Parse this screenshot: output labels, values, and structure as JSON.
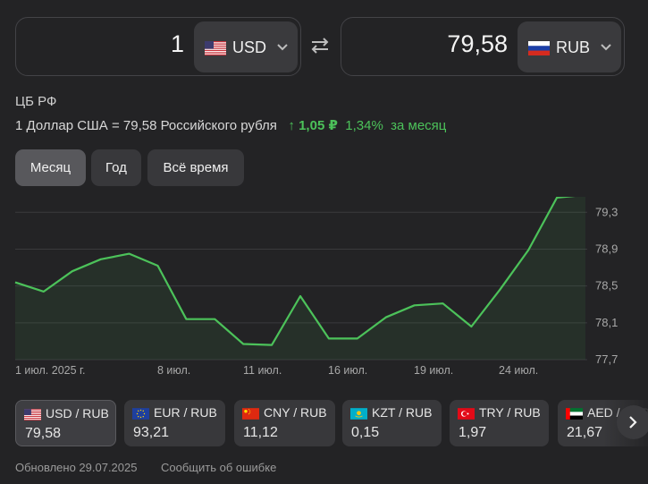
{
  "converter": {
    "from_amount": "1",
    "from_currency": "USD",
    "to_amount": "79,58",
    "to_currency": "RUB"
  },
  "source": "ЦБ РФ",
  "rate": {
    "text": "1 Доллар США = 79,58 Российского рубля",
    "arrow": "↑",
    "change_abs": "1,05 ₽",
    "change_pct": "1,34%",
    "period_text": "за месяц"
  },
  "periods": [
    {
      "label": "Месяц",
      "active": true
    },
    {
      "label": "Год",
      "active": false
    },
    {
      "label": "Всё время",
      "active": false
    }
  ],
  "chart_data": {
    "type": "area",
    "line_color": "#4cc25a",
    "x_tick_labels": [
      "1 июл. 2025 г.",
      "8 июл.",
      "11 июл.",
      "16 июл.",
      "19 июл.",
      "24 июл."
    ],
    "y_tick_labels": [
      "79,3",
      "78,9",
      "78,5",
      "78,1",
      "77,7"
    ],
    "ylim": [
      77.7,
      79.4
    ],
    "grid": true,
    "values": [
      78.53,
      78.43,
      78.65,
      78.78,
      78.84,
      78.71,
      78.13,
      78.13,
      77.86,
      77.85,
      78.38,
      77.92,
      77.92,
      78.15,
      78.28,
      78.3,
      78.05,
      78.45,
      78.88,
      79.45,
      79.48
    ]
  },
  "pairs": [
    {
      "name": "USD / RUB",
      "value": "79,58",
      "flag": "us-flag",
      "active": true
    },
    {
      "name": "EUR / RUB",
      "value": "93,21",
      "flag": "eu-flag",
      "active": false
    },
    {
      "name": "CNY / RUB",
      "value": "11,12",
      "flag": "cn-flag",
      "active": false
    },
    {
      "name": "KZT / RUB",
      "value": "0,15",
      "flag": "kz-flag",
      "active": false
    },
    {
      "name": "TRY / RUB",
      "value": "1,97",
      "flag": "tr-flag",
      "active": false
    },
    {
      "name": "AED / RUB",
      "value": "21,67",
      "flag": "ae-flag",
      "active": false
    }
  ],
  "footer": {
    "updated": "Обновлено 29.07.2025",
    "report": "Сообщить об ошибке"
  }
}
